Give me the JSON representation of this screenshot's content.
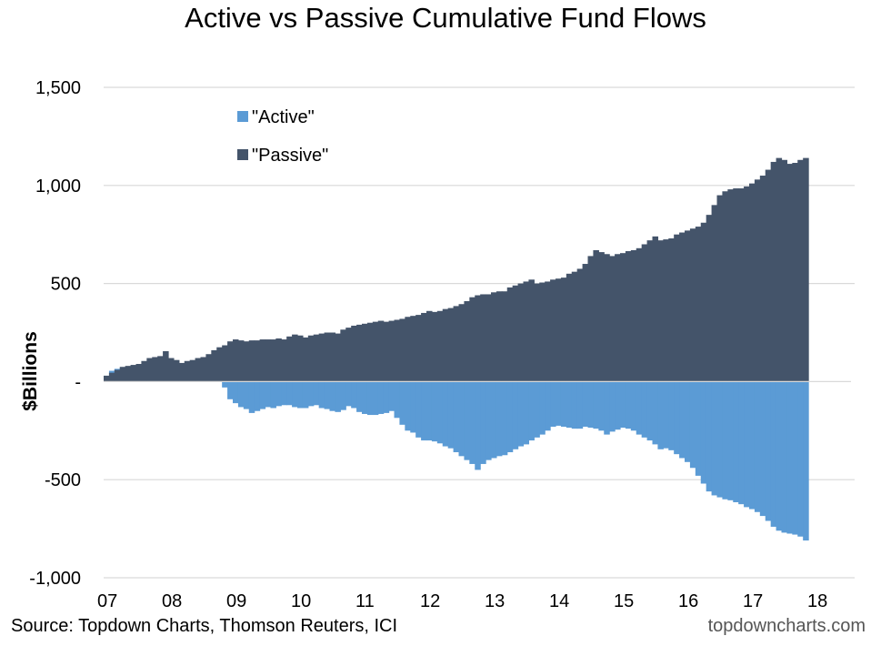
{
  "chart_data": {
    "type": "area",
    "title": "Active vs Passive Cumulative Fund Flows",
    "xlabel": "",
    "ylabel": "$Billions",
    "ylim": [
      -1000,
      1500
    ],
    "yticks": [
      {
        "value": 1500,
        "label": "1,500"
      },
      {
        "value": 1000,
        "label": "1,000"
      },
      {
        "value": 500,
        "label": "500"
      },
      {
        "value": 0,
        "label": "-"
      },
      {
        "value": -500,
        "label": "-500"
      },
      {
        "value": -1000,
        "label": "-1,000"
      }
    ],
    "xticks": [
      "07",
      "08",
      "09",
      "10",
      "11",
      "12",
      "13",
      "14",
      "15",
      "16",
      "17",
      "18"
    ],
    "x_start_year": 2007,
    "points_per_year": 12,
    "grid": true,
    "legend_position": "top-left",
    "colors": {
      "active": "#5B9BD5",
      "passive": "#44546A",
      "grid": "#D9D9D9"
    },
    "series": [
      {
        "name": "\"Active\"",
        "color": "#5B9BD5",
        "values": [
          30,
          55,
          65,
          70,
          75,
          80,
          78,
          82,
          85,
          80,
          75,
          85,
          80,
          70,
          55,
          45,
          55,
          50,
          40,
          25,
          15,
          10,
          -30,
          -90,
          -110,
          -130,
          -140,
          -160,
          -150,
          -140,
          -130,
          -135,
          -125,
          -120,
          -120,
          -130,
          -135,
          -135,
          -125,
          -120,
          -135,
          -140,
          -150,
          -155,
          -145,
          -125,
          -135,
          -155,
          -165,
          -170,
          -170,
          -165,
          -160,
          -150,
          -185,
          -220,
          -250,
          -260,
          -285,
          -300,
          -300,
          -305,
          -315,
          -330,
          -340,
          -360,
          -380,
          -400,
          -420,
          -450,
          -420,
          -400,
          -390,
          -380,
          -375,
          -360,
          -345,
          -330,
          -320,
          -300,
          -285,
          -270,
          -250,
          -230,
          -225,
          -230,
          -235,
          -240,
          -240,
          -230,
          -235,
          -240,
          -250,
          -270,
          -255,
          -245,
          -235,
          -240,
          -250,
          -270,
          -285,
          -300,
          -320,
          -345,
          -340,
          -350,
          -370,
          -390,
          -410,
          -440,
          -480,
          -520,
          -560,
          -580,
          -590,
          -600,
          -605,
          -615,
          -625,
          -640,
          -650,
          -665,
          -685,
          -710,
          -740,
          -760,
          -770,
          -775,
          -780,
          -790,
          -810
        ]
      },
      {
        "name": "\"Passive\"",
        "color": "#44546A",
        "values": [
          30,
          45,
          60,
          75,
          80,
          85,
          90,
          105,
          120,
          125,
          130,
          155,
          120,
          110,
          95,
          105,
          110,
          120,
          125,
          140,
          160,
          175,
          185,
          205,
          215,
          210,
          205,
          210,
          210,
          215,
          215,
          215,
          220,
          215,
          230,
          240,
          235,
          225,
          235,
          240,
          245,
          250,
          250,
          245,
          265,
          275,
          285,
          290,
          295,
          300,
          305,
          310,
          305,
          310,
          315,
          320,
          330,
          335,
          340,
          350,
          360,
          355,
          360,
          370,
          375,
          385,
          395,
          410,
          430,
          440,
          445,
          445,
          455,
          460,
          460,
          480,
          490,
          500,
          510,
          520,
          500,
          505,
          510,
          520,
          525,
          530,
          550,
          560,
          575,
          600,
          640,
          670,
          660,
          650,
          640,
          650,
          655,
          665,
          670,
          680,
          700,
          720,
          740,
          720,
          725,
          730,
          750,
          760,
          770,
          780,
          790,
          810,
          850,
          900,
          950,
          970,
          980,
          985,
          985,
          995,
          1010,
          1030,
          1050,
          1080,
          1120,
          1140,
          1130,
          1110,
          1115,
          1130,
          1140
        ]
      }
    ]
  },
  "footer": {
    "source": "Source: Topdown Charts, Thomson Reuters, ICI",
    "watermark": "topdowncharts.com"
  }
}
